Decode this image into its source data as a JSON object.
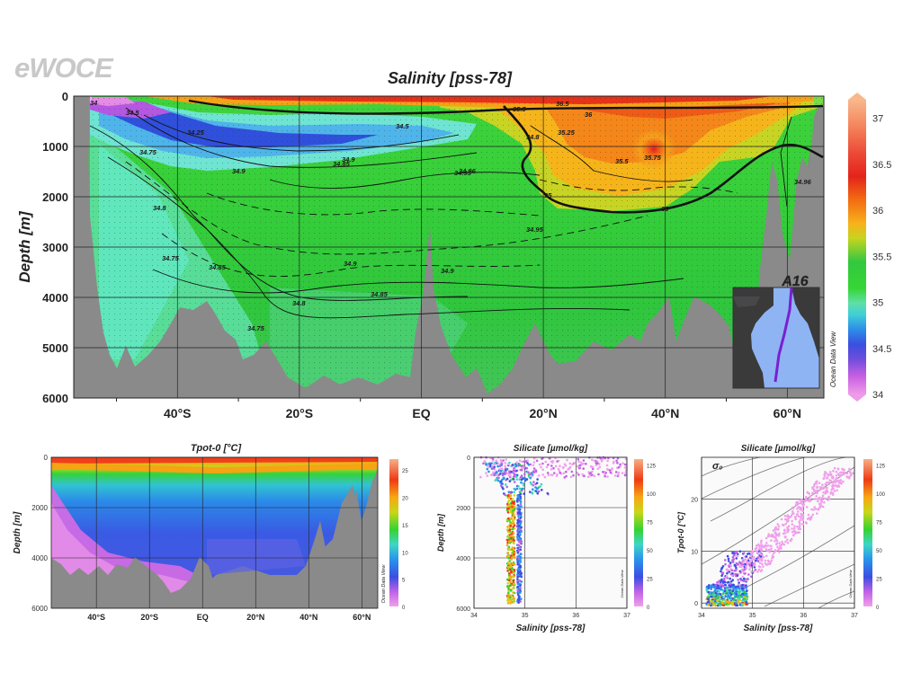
{
  "logo": "eWOCE",
  "inset_label": "A16",
  "odv_label": "Ocean Data View",
  "chart_data": [
    {
      "id": "main",
      "type": "heatmap",
      "title": "Salinity [pss-78]",
      "ylabel": "Depth [m]",
      "xlabel": "",
      "x_ticks": [
        "40°S",
        "20°S",
        "EQ",
        "20°N",
        "40°N",
        "60°N"
      ],
      "x_tick_lat": [
        -40,
        -20,
        0,
        20,
        40,
        60
      ],
      "xlim": [
        -57,
        66
      ],
      "y_ticks": [
        "0",
        "1000",
        "2000",
        "3000",
        "4000",
        "5000",
        "6000"
      ],
      "ylim": [
        6000,
        0
      ],
      "colorbar_ticks": [
        "37",
        "36.5",
        "36",
        "35.5",
        "35",
        "34.5",
        "34"
      ],
      "colorbar_range": [
        34,
        37.2
      ],
      "contour_labels": [
        "34",
        "34.5",
        "34.25",
        "34.5",
        "34.75",
        "34.8",
        "34.9",
        "34.85",
        "34.9",
        "34.95",
        "34.96",
        "34.75",
        "34.85",
        "34.9",
        "34.9",
        "34.85",
        "34.8",
        "34.75",
        "35",
        "35.5",
        "35.75",
        "35.25",
        "35",
        "36",
        "35.5",
        "34.8",
        "36.5",
        "34.95",
        "34.96"
      ],
      "grid": true
    },
    {
      "id": "temp_section",
      "type": "heatmap",
      "title": "Tpot-0 [°C]",
      "ylabel": "Depth [m]",
      "x_ticks": [
        "40°S",
        "20°S",
        "EQ",
        "20°N",
        "40°N",
        "60°N"
      ],
      "y_ticks": [
        "0",
        "2000",
        "4000",
        "6000"
      ],
      "ylim": [
        6000,
        0
      ],
      "colorbar_ticks": [
        "25",
        "20",
        "15",
        "10",
        "5",
        "0"
      ],
      "colorbar_range": [
        0,
        27
      ],
      "grid": true
    },
    {
      "id": "depth_salinity",
      "type": "scatter",
      "title": "Silicate [µmol/kg]",
      "xlabel": "Salinity [pss-78]",
      "ylabel": "Depth [m]",
      "x_ticks": [
        "34",
        "35",
        "36",
        "37"
      ],
      "xlim": [
        34,
        37
      ],
      "y_ticks": [
        "0",
        "2000",
        "4000",
        "6000"
      ],
      "ylim": [
        6000,
        0
      ],
      "colorbar_ticks": [
        "125",
        "100",
        "75",
        "50",
        "25",
        "0"
      ],
      "colorbar_range": [
        0,
        130
      ],
      "grid": true
    },
    {
      "id": "ts_diagram",
      "type": "scatter",
      "title": "Silicate [µmol/kg]",
      "xlabel": "Salinity [pss-78]",
      "ylabel": "Tpot-0 [°C]",
      "x_ticks": [
        "34",
        "35",
        "36",
        "37"
      ],
      "xlim": [
        34,
        37
      ],
      "y_ticks": [
        "0",
        "10",
        "20"
      ],
      "ylim": [
        -1,
        28
      ],
      "sigma_label": "σ₀",
      "colorbar_ticks": [
        "125",
        "100",
        "75",
        "50",
        "25",
        "0"
      ],
      "colorbar_range": [
        0,
        130
      ],
      "grid": true
    }
  ]
}
